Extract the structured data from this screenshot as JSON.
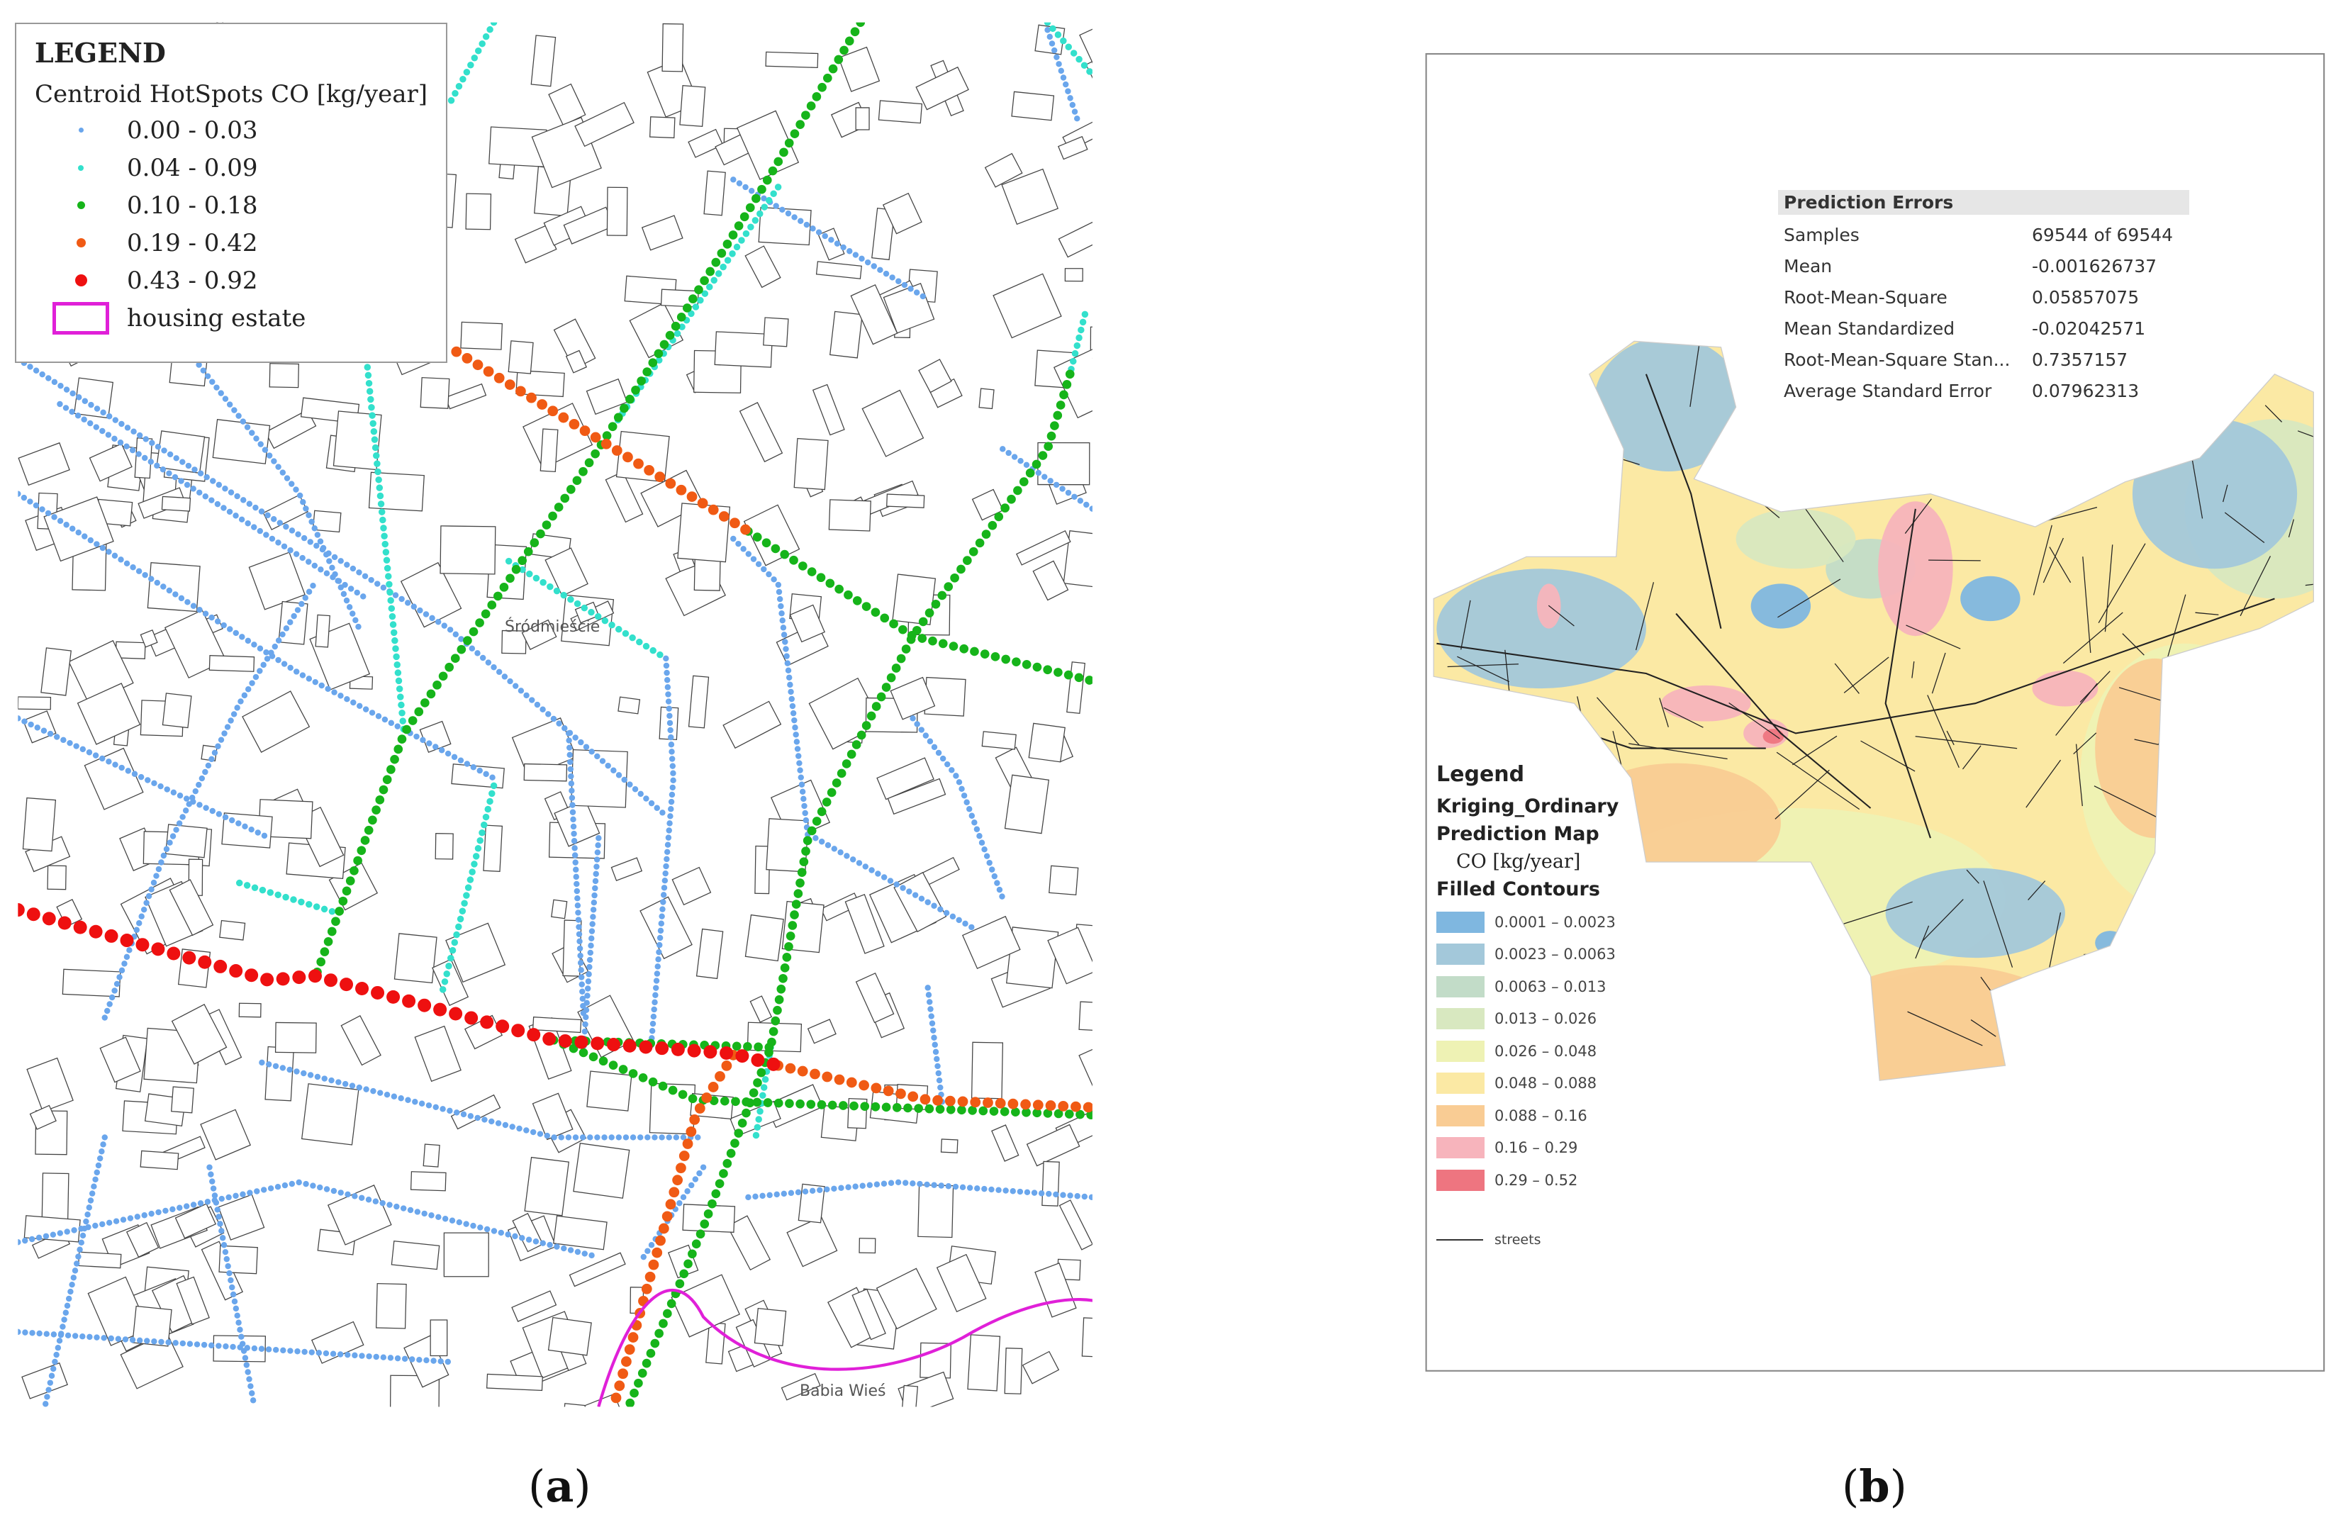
{
  "panel_a": {
    "legend": {
      "title": "LEGEND",
      "layer": "Centroid HotSpots CO [kg/year]",
      "classes": [
        {
          "label": "0.00 - 0.03",
          "color": "#6aa6ec"
        },
        {
          "label": "0.04 - 0.09",
          "color": "#33e0cc"
        },
        {
          "label": "0.10 - 0.18",
          "color": "#16b41a"
        },
        {
          "label": "0.19 - 0.42",
          "color": "#f05a14"
        },
        {
          "label": "0.43 - 0.92",
          "color": "#ee1010"
        }
      ],
      "housing": {
        "label": "housing estate",
        "color": "#e020d8"
      }
    },
    "place_labels": [
      "Śródmieście",
      "Babia Wieś"
    ],
    "caption_letter": "a"
  },
  "panel_b": {
    "prediction_errors": {
      "title": "Prediction Errors",
      "rows": [
        {
          "key": "Samples",
          "value": "69544 of 69544"
        },
        {
          "key": "Mean",
          "value": "-0.001626737"
        },
        {
          "key": "Root-Mean-Square",
          "value": "0.05857075"
        },
        {
          "key": "Mean Standardized",
          "value": "-0.02042571"
        },
        {
          "key": "Root-Mean-Square Stan...",
          "value": "0.7357157"
        },
        {
          "key": "Average Standard Error",
          "value": "0.07962313"
        }
      ]
    },
    "legend": {
      "title": "Legend",
      "layer": "Kriging_Ordinary",
      "sublayer": "Prediction Map",
      "unit": "CO [kg/year]",
      "contours_title": "Filled Contours",
      "classes": [
        {
          "label": "0.0001 – 0.0023",
          "color": "#7fb7e0"
        },
        {
          "label": "0.0023 – 0.0063",
          "color": "#a3c8da"
        },
        {
          "label": "0.0063 – 0.013",
          "color": "#c2dcc8"
        },
        {
          "label": "0.013 – 0.026",
          "color": "#d8e8c0"
        },
        {
          "label": "0.026 – 0.048",
          "color": "#eef2b4"
        },
        {
          "label": "0.048 – 0.088",
          "color": "#fbe9a4"
        },
        {
          "label": "0.088 – 0.16",
          "color": "#f9cc94"
        },
        {
          "label": "0.16 – 0.29",
          "color": "#f7b4bc"
        },
        {
          "label": "0.29 – 0.52",
          "color": "#ee7580"
        }
      ],
      "streets_label": "streets"
    },
    "caption_letter": "b"
  }
}
